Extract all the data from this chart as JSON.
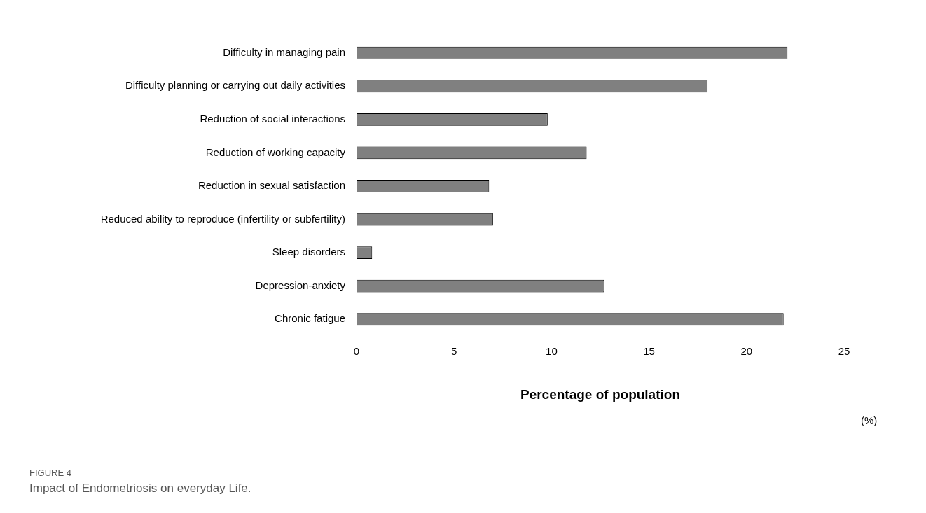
{
  "chart_data": {
    "type": "bar",
    "orientation": "horizontal",
    "xlabel": "Percentage of population",
    "categories": [
      "Difficulty in managing pain",
      "Difficulty planning or carrying out daily activities",
      "Reduction of social interactions",
      "Reduction of working capacity",
      "Reduction in sexual satisfaction",
      "Reduced ability to reproduce (infertility or subfertility)",
      "Sleep disorders",
      "Depression-anxiety",
      "Chronic fatigue"
    ],
    "values": [
      22.1,
      18.0,
      9.8,
      11.8,
      6.8,
      7.0,
      0.8,
      12.7,
      21.9
    ],
    "color": "#808080",
    "xlim": [
      0,
      25
    ],
    "xticks": [
      0,
      5,
      10,
      15,
      20,
      25
    ],
    "grid": false,
    "legend": false,
    "annotations": [
      "(%)",
      "FIGURE 4",
      "Impact of Endometriosis on everyday Life."
    ]
  }
}
